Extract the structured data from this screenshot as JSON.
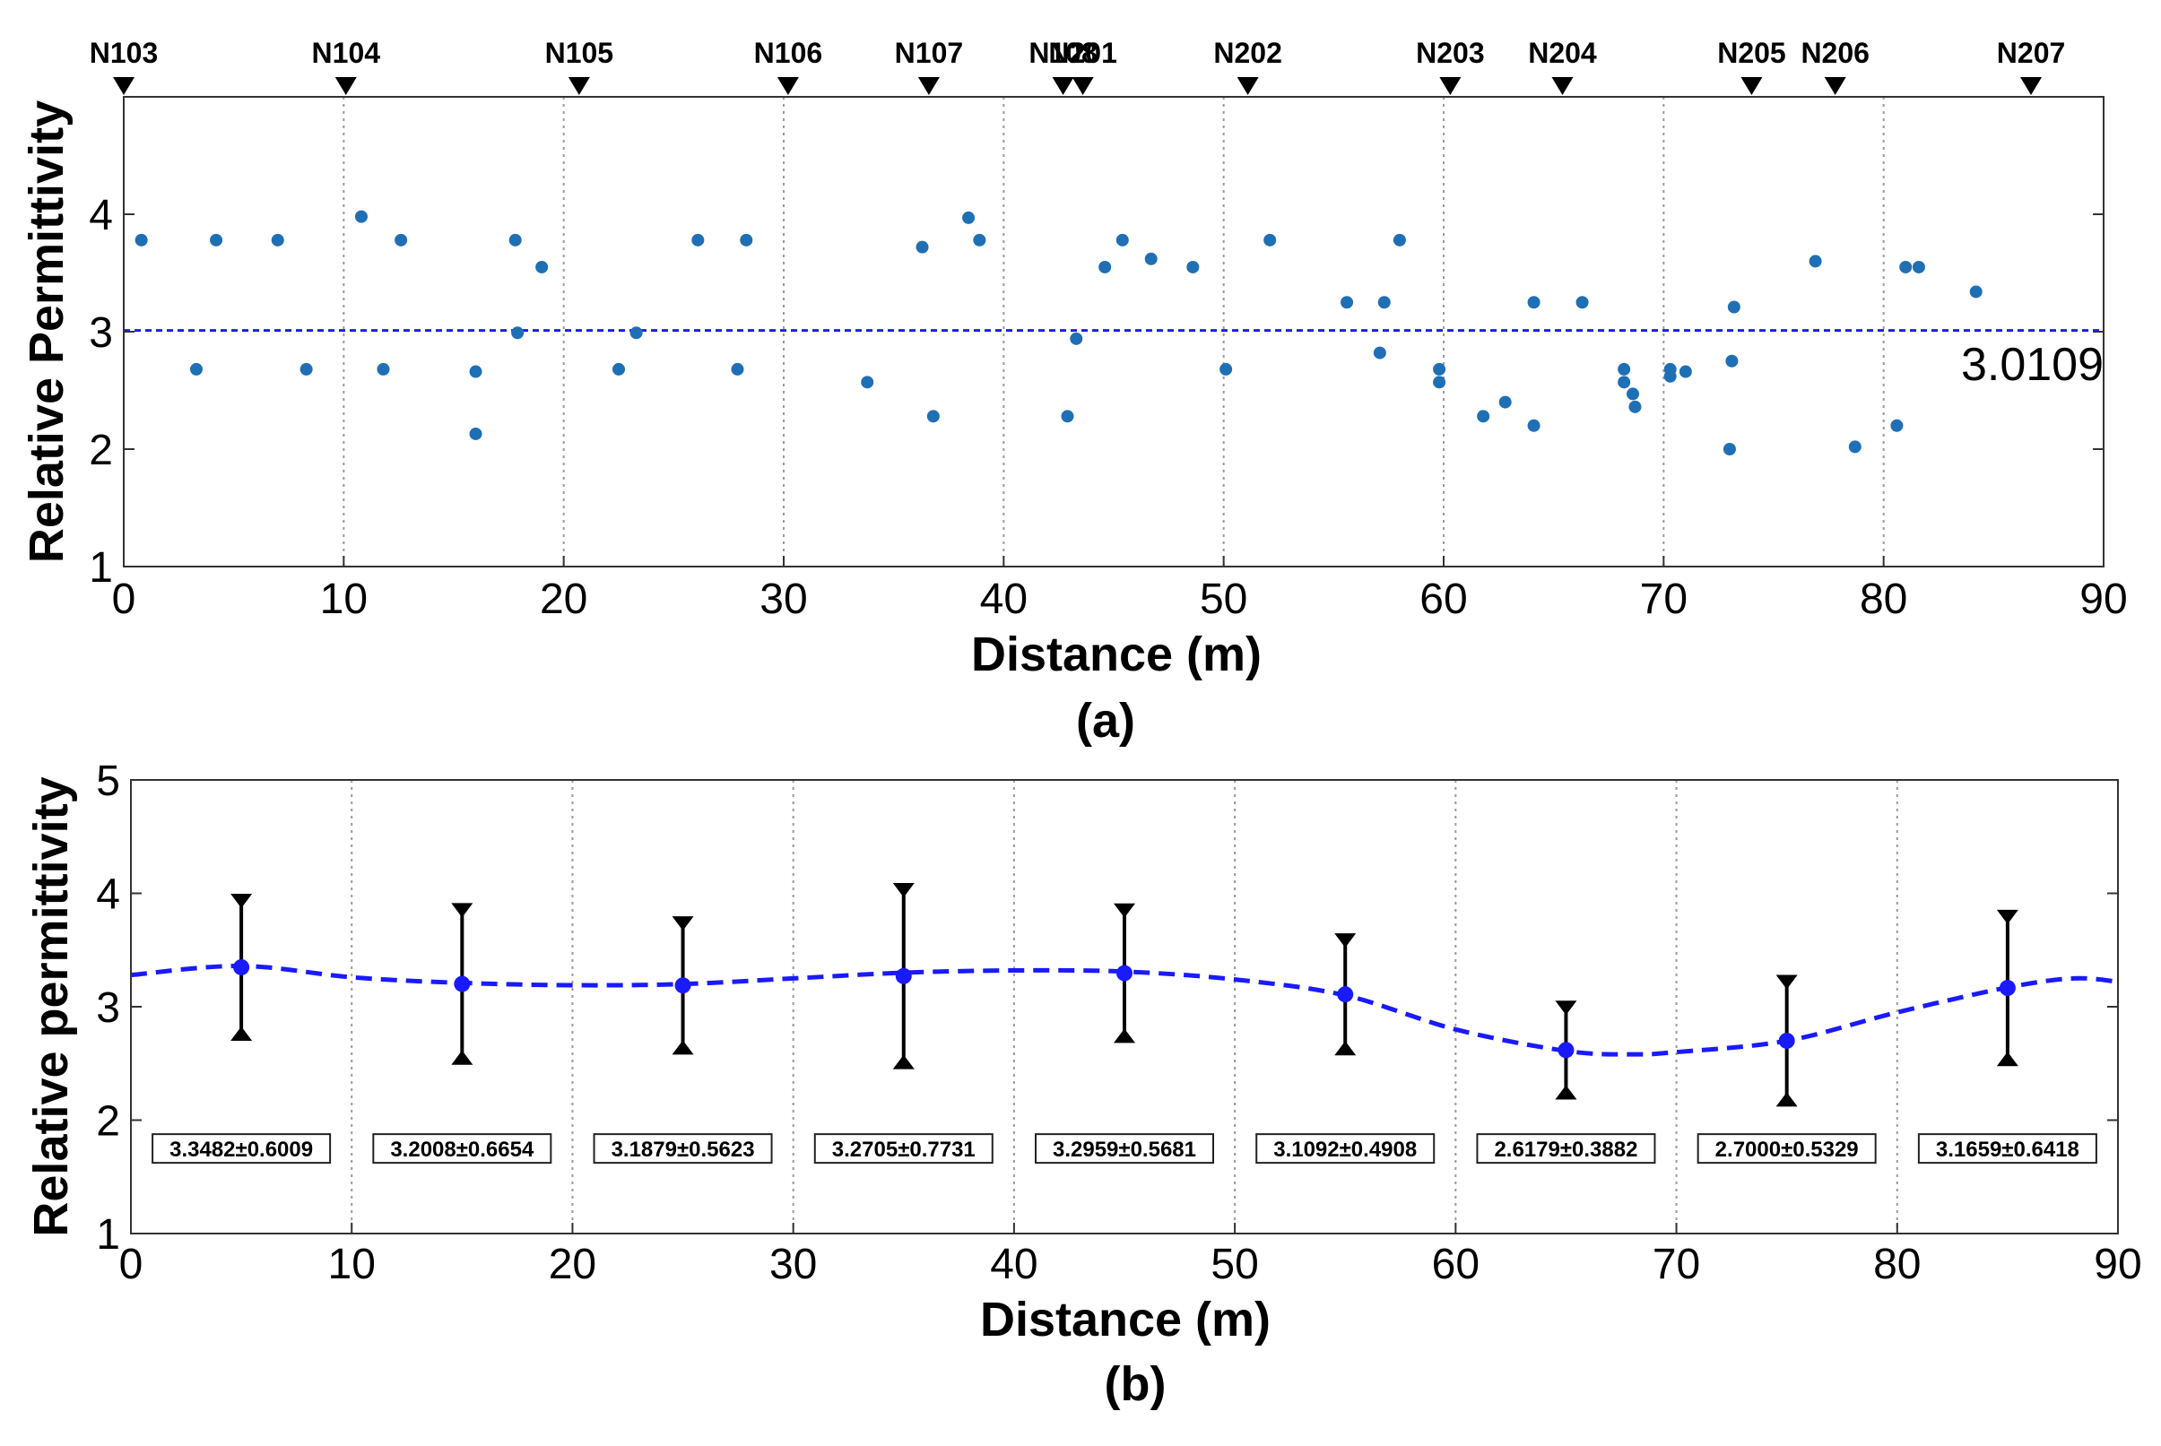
{
  "chart_data": [
    {
      "panel": "a",
      "type": "scatter",
      "panel_label": "(a)",
      "xlabel": "Distance (m)",
      "ylabel": "Relative Permittivity",
      "xlim": [
        0,
        90
      ],
      "ylim": [
        1,
        5
      ],
      "xticks": [
        0,
        10,
        20,
        30,
        40,
        50,
        60,
        70,
        80,
        90
      ],
      "yticks": [
        1,
        2,
        3,
        4
      ],
      "vertical_gridlines_x": [
        10,
        20,
        30,
        40,
        50,
        60,
        70,
        80
      ],
      "mean_value": 3.0109,
      "mean_label": "3.0109",
      "point_color": "#1f6fb5",
      "mean_line_color": "#1a1aff",
      "nodes": [
        {
          "label": "N103",
          "x": 0.0
        },
        {
          "label": "N104",
          "x": 10.1
        },
        {
          "label": "N105",
          "x": 20.7
        },
        {
          "label": "N106",
          "x": 30.2
        },
        {
          "label": "N107",
          "x": 36.6
        },
        {
          "label": "N108",
          "x": 42.7
        },
        {
          "label": "N201",
          "x": 43.6
        },
        {
          "label": "N202",
          "x": 51.1
        },
        {
          "label": "N203",
          "x": 60.3
        },
        {
          "label": "N204",
          "x": 65.4
        },
        {
          "label": "N205",
          "x": 74.0
        },
        {
          "label": "N206",
          "x": 77.8
        },
        {
          "label": "N207",
          "x": 86.7
        }
      ],
      "points": [
        [
          0.8,
          3.78
        ],
        [
          3.3,
          2.68
        ],
        [
          4.2,
          3.78
        ],
        [
          7.0,
          3.78
        ],
        [
          8.3,
          2.68
        ],
        [
          10.8,
          3.98
        ],
        [
          11.8,
          2.68
        ],
        [
          12.6,
          3.78
        ],
        [
          16.0,
          2.66
        ],
        [
          16.0,
          2.13
        ],
        [
          17.8,
          3.78
        ],
        [
          17.9,
          2.99
        ],
        [
          19.0,
          3.55
        ],
        [
          22.5,
          2.68
        ],
        [
          23.3,
          2.99
        ],
        [
          26.1,
          3.78
        ],
        [
          27.9,
          2.68
        ],
        [
          28.3,
          3.78
        ],
        [
          33.8,
          2.57
        ],
        [
          36.3,
          3.72
        ],
        [
          36.8,
          2.28
        ],
        [
          38.4,
          3.97
        ],
        [
          38.9,
          3.78
        ],
        [
          42.9,
          2.28
        ],
        [
          43.3,
          2.94
        ],
        [
          44.6,
          3.55
        ],
        [
          45.4,
          3.78
        ],
        [
          46.7,
          3.62
        ],
        [
          48.6,
          3.55
        ],
        [
          50.1,
          2.68
        ],
        [
          52.1,
          3.78
        ],
        [
          55.6,
          3.25
        ],
        [
          57.1,
          2.82
        ],
        [
          57.3,
          3.25
        ],
        [
          58.0,
          3.78
        ],
        [
          59.8,
          2.68
        ],
        [
          59.8,
          2.57
        ],
        [
          61.8,
          2.28
        ],
        [
          62.8,
          2.4
        ],
        [
          64.1,
          2.2
        ],
        [
          64.1,
          3.25
        ],
        [
          66.3,
          3.25
        ],
        [
          68.2,
          2.68
        ],
        [
          68.2,
          2.57
        ],
        [
          68.6,
          2.47
        ],
        [
          68.7,
          2.36
        ],
        [
          70.3,
          2.68
        ],
        [
          70.3,
          2.62
        ],
        [
          71.0,
          2.66
        ],
        [
          73.0,
          2.0
        ],
        [
          73.2,
          3.21
        ],
        [
          73.1,
          2.75
        ],
        [
          76.9,
          3.6
        ],
        [
          78.7,
          2.02
        ],
        [
          80.6,
          2.2
        ],
        [
          81.0,
          3.55
        ],
        [
          81.6,
          3.55
        ],
        [
          84.2,
          3.34
        ]
      ]
    },
    {
      "panel": "b",
      "type": "line",
      "panel_label": "(b)",
      "xlabel": "Distance (m)",
      "ylabel": "Relative permittivity",
      "xlim": [
        0,
        90
      ],
      "ylim": [
        1,
        5
      ],
      "xticks": [
        0,
        10,
        20,
        30,
        40,
        50,
        60,
        70,
        80,
        90
      ],
      "yticks": [
        1,
        2,
        3,
        4,
        5
      ],
      "vertical_gridlines_x": [
        10,
        20,
        30,
        40,
        50,
        60,
        70,
        80
      ],
      "line_color": "#1a1aff",
      "errorbar_color": "#000000",
      "x": [
        5,
        15,
        25,
        35,
        45,
        55,
        65,
        75,
        85
      ],
      "means": [
        3.3482,
        3.2008,
        3.1879,
        3.2705,
        3.2959,
        3.1092,
        2.6179,
        2.7,
        3.1659
      ],
      "errors": [
        0.6009,
        0.6654,
        0.5623,
        0.7731,
        0.5681,
        0.4908,
        0.3882,
        0.5329,
        0.6418
      ],
      "box_labels": [
        "3.3482±0.6009",
        "3.2008±0.6654",
        "3.1879±0.5623",
        "3.2705±0.7731",
        "3.2959±0.5681",
        "3.1092±0.4908",
        "2.6179±0.3882",
        "2.7000±0.5329",
        "3.1659±0.6418"
      ],
      "box_label_y": 1.75,
      "curve": {
        "x": [
          0,
          5,
          10,
          15,
          20,
          25,
          30,
          35,
          40,
          45,
          50,
          55,
          60,
          65,
          68,
          70,
          75,
          80,
          85,
          88,
          90
        ],
        "y": [
          3.28,
          3.36,
          3.26,
          3.21,
          3.19,
          3.2,
          3.25,
          3.3,
          3.32,
          3.31,
          3.24,
          3.1,
          2.8,
          2.61,
          2.58,
          2.6,
          2.7,
          2.95,
          3.17,
          3.25,
          3.22
        ]
      }
    }
  ]
}
